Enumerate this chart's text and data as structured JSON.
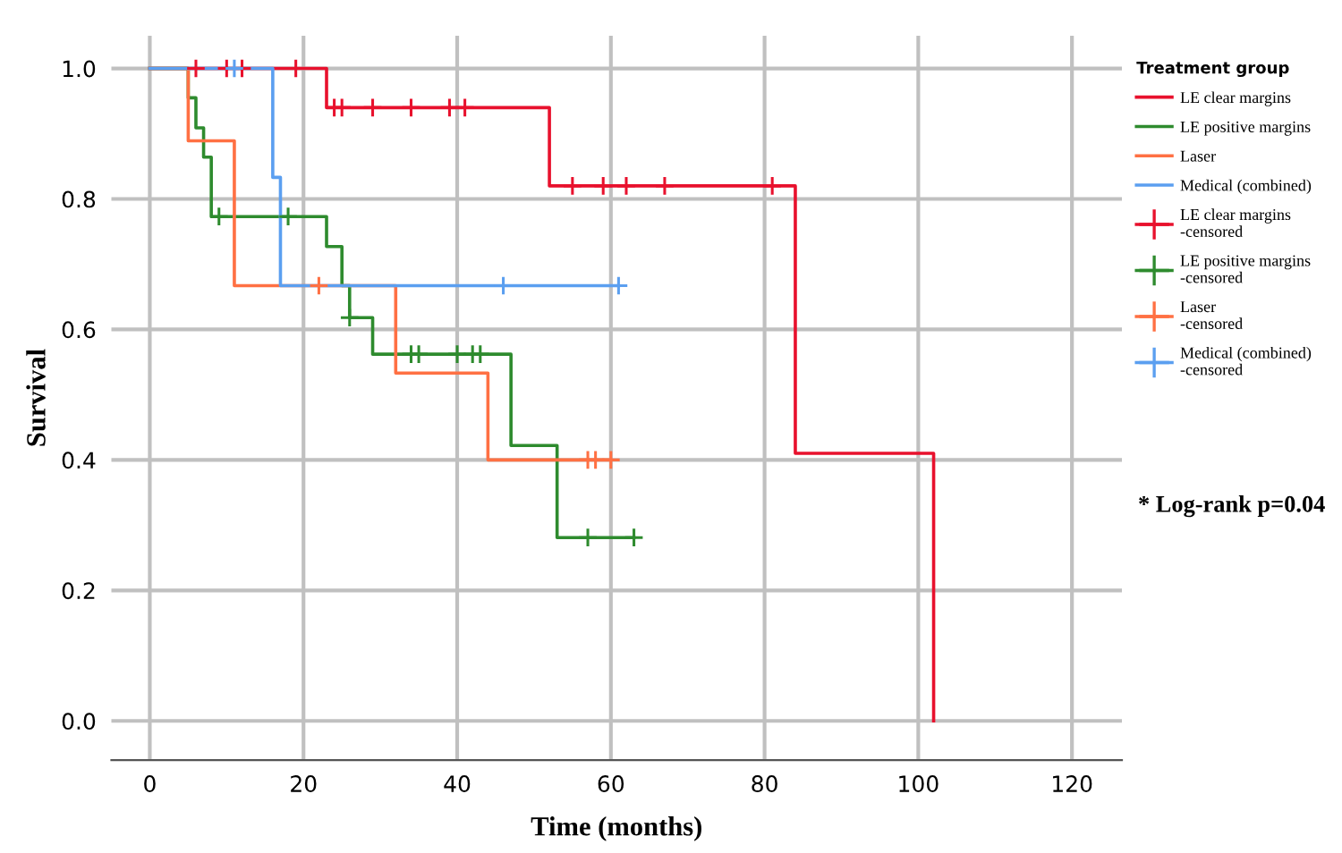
{
  "chart_data": {
    "type": "step",
    "xlabel": "Time (months)",
    "ylabel": "Survival",
    "legend_title": "Treatment group",
    "annotations": [
      "* Log-rank p=0.04"
    ],
    "xlim": [
      -5,
      126.5
    ],
    "xticks": [
      0,
      20,
      40,
      60,
      80,
      100,
      120
    ],
    "ylim": [
      -0.06,
      1.05
    ],
    "yticks": [
      {
        "value": 0,
        "label": "0.0"
      },
      {
        "value": 0.2,
        "label": "0.2"
      },
      {
        "value": 0.4,
        "label": "0.4"
      },
      {
        "value": 0.6,
        "label": "0.6"
      },
      {
        "value": 0.8,
        "label": "0.8"
      },
      {
        "value": 1,
        "label": "1.0"
      }
    ],
    "grid": true,
    "legend": "right",
    "line_style": "solid",
    "series": [
      {
        "name": "LE clear margins",
        "color": "#e8112d",
        "x": [
          0,
          23,
          52,
          84,
          102
        ],
        "values": [
          1.0,
          0.94,
          0.82,
          0.41,
          0.0
        ]
      },
      {
        "name": "LE positive margins",
        "color": "#2e8b2e",
        "x": [
          0,
          5,
          6,
          7,
          8,
          23,
          25,
          26,
          29,
          47,
          53,
          63
        ],
        "values": [
          1.0,
          0.955,
          0.909,
          0.864,
          0.773,
          0.727,
          0.667,
          0.618,
          0.562,
          0.422,
          0.281,
          0.281
        ]
      },
      {
        "name": "Laser",
        "color": "#ff7043",
        "x": [
          0,
          5,
          11,
          32,
          44,
          60
        ],
        "values": [
          1.0,
          0.889,
          0.667,
          0.533,
          0.4,
          0.4
        ]
      },
      {
        "name": "Medical (combined)",
        "color": "#5b9ff0",
        "x": [
          0,
          16,
          17,
          61
        ],
        "values": [
          1.0,
          0.833,
          0.667,
          0.667
        ]
      },
      {
        "name": "LE clear margins\n-censored",
        "color": "#e8112d",
        "type": "scatter",
        "marker": "cross",
        "x": [
          6,
          10,
          12,
          19,
          24,
          25,
          29,
          34,
          39,
          41,
          55,
          59,
          62,
          67,
          81
        ],
        "values": [
          1,
          1,
          1,
          1,
          0.94,
          0.94,
          0.94,
          0.94,
          0.94,
          0.94,
          0.82,
          0.82,
          0.82,
          0.82,
          0.82
        ]
      },
      {
        "name": "LE positive margins\n-censored",
        "color": "#2e8b2e",
        "type": "scatter",
        "marker": "cross",
        "x": [
          9,
          18,
          26,
          34,
          35,
          40,
          42,
          43,
          57,
          63
        ],
        "values": [
          0.773,
          0.773,
          0.618,
          0.562,
          0.562,
          0.562,
          0.562,
          0.562,
          0.281,
          0.281
        ]
      },
      {
        "name": "Laser\n-censored",
        "color": "#ff7043",
        "type": "scatter",
        "marker": "cross",
        "x": [
          22,
          57,
          58,
          60
        ],
        "values": [
          0.667,
          0.4,
          0.4,
          0.4
        ]
      },
      {
        "name": "Medical (combined)\n-censored",
        "color": "#5b9ff0",
        "type": "scatter",
        "marker": "cross",
        "x": [
          11,
          46,
          61
        ],
        "values": [
          1,
          0.667,
          0.667
        ]
      }
    ]
  }
}
